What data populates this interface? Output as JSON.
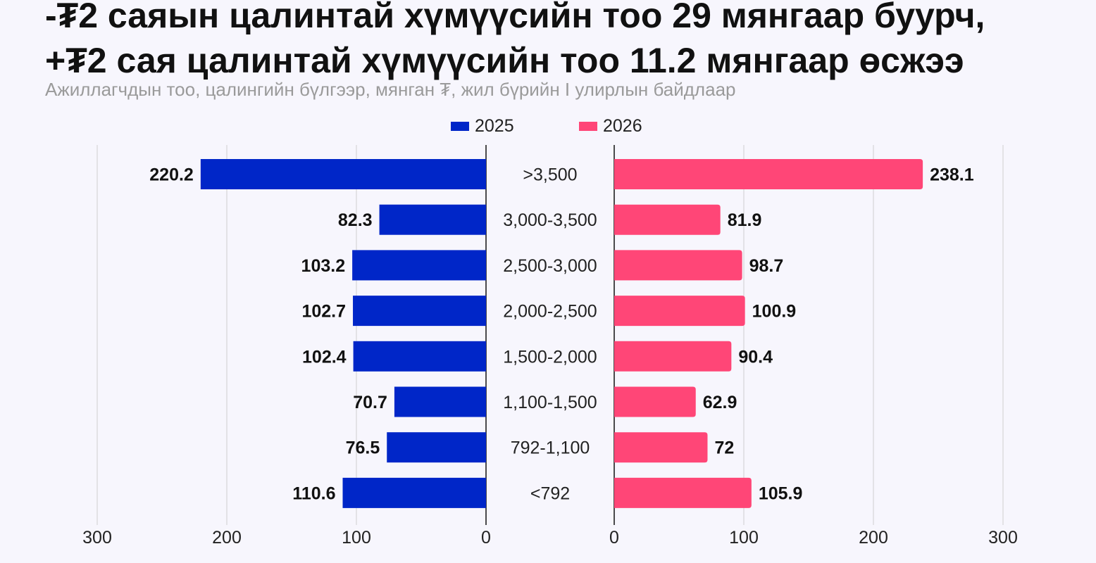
{
  "title_lines": [
    "-₮2 саяын цалинтай хүмүүсийн тоо 29 мянгаар буурч,",
    "+₮2 сая цалинтай хүмүүсийн тоо 11.2 мянгаар өсжээ"
  ],
  "subtitle": "Ажиллагчдын тоо, цалингийн бүлгээр, мянган ₮, жил бүрийн I улирлын байдлаар",
  "chart_data": {
    "type": "bar",
    "orientation": "horizontal-butterfly",
    "categories": [
      ">3,500",
      "3,000-3,500",
      "2,500-3,000",
      "2,000-2,500",
      "1,500-2,000",
      "1,100-1,500",
      "792-1,100",
      "<792"
    ],
    "series": [
      {
        "name": "2025",
        "side": "left",
        "color": "#0026c8",
        "values": [
          220.2,
          82.3,
          103.2,
          102.7,
          102.4,
          70.7,
          76.5,
          110.6
        ],
        "labels": [
          "220.2",
          "82.3",
          "103.2",
          "102.7",
          "102.4",
          "70.7",
          "76.5",
          "110.6"
        ]
      },
      {
        "name": "2026",
        "side": "right",
        "color": "#ff4677",
        "values": [
          238.1,
          81.9,
          98.7,
          100.9,
          90.4,
          62.9,
          72,
          105.9
        ],
        "labels": [
          "238.1",
          "81.9",
          "98.7",
          "100.9",
          "90.4",
          "62.9",
          "72",
          "105.9"
        ]
      }
    ],
    "xlim": [
      0,
      300
    ],
    "ticks": [
      0,
      100,
      200,
      300
    ],
    "tick_labels": [
      "0",
      "100",
      "200",
      "300"
    ],
    "grid": true,
    "legend_position": "top-center"
  }
}
